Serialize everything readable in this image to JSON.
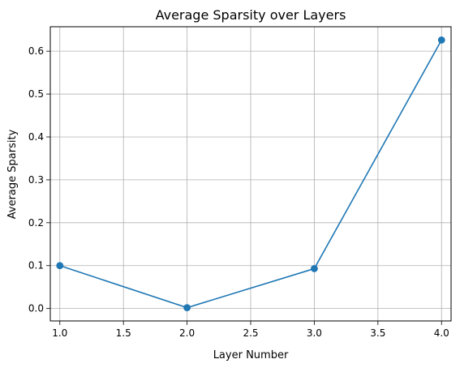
{
  "chart_data": {
    "type": "line",
    "title": "Average Sparsity over Layers",
    "xlabel": "Layer Number",
    "ylabel": "Average Sparsity",
    "x": [
      1.0,
      2.0,
      3.0,
      4.0
    ],
    "series": [
      {
        "values": [
          0.1,
          0.002,
          0.093,
          0.626
        ],
        "color": "#1f77b4",
        "marker": "circle"
      }
    ],
    "xlim": [
      0.925,
      4.075
    ],
    "ylim": [
      -0.029,
      0.657
    ],
    "xticks": [
      "1.0",
      "1.5",
      "2.0",
      "2.5",
      "3.0",
      "3.5",
      "4.0"
    ],
    "yticks": [
      "0.0",
      "0.1",
      "0.2",
      "0.3",
      "0.4",
      "0.5",
      "0.6"
    ],
    "grid": true,
    "legend": "none"
  }
}
